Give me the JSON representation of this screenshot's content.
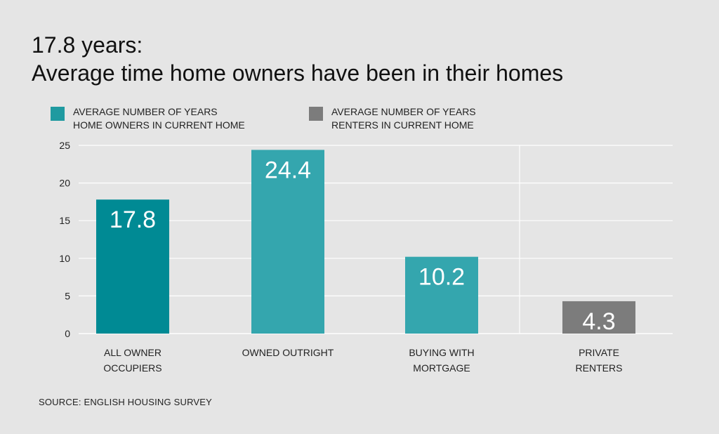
{
  "title": {
    "line1": "17.8 years:",
    "line2": "Average time home owners have been in their homes"
  },
  "legend": [
    {
      "line1": "AVERAGE NUMBER OF YEARS",
      "line2": "HOME OWNERS IN CURRENT HOME",
      "color": "#1f9aa0"
    },
    {
      "line1": "AVERAGE NUMBER OF YEARS",
      "line2": "RENTERS IN CURRENT HOME",
      "color": "#7c7c7c"
    }
  ],
  "source": "SOURCE: ENGLISH HOUSING SURVEY",
  "chart_data": {
    "type": "bar",
    "title": "17.8 years: Average time home owners have been in their homes",
    "xlabel": "",
    "ylabel": "",
    "ylim": [
      0,
      25
    ],
    "yticks": [
      0,
      5,
      10,
      15,
      20,
      25
    ],
    "grid": true,
    "legend_position": "top",
    "categories": [
      [
        "ALL OWNER",
        "OCCUPIERS"
      ],
      [
        "OWNED OUTRIGHT"
      ],
      [
        "BUYING WITH",
        "MORTGAGE"
      ],
      [
        "PRIVATE",
        "RENTERS"
      ]
    ],
    "values": [
      17.8,
      24.4,
      10.2,
      4.3
    ],
    "value_labels": [
      "17.8",
      "24.4",
      "10.2",
      "4.3"
    ],
    "bar_colors": [
      "#008a94",
      "#34a6ae",
      "#34a6ae",
      "#7c7c7c"
    ]
  }
}
